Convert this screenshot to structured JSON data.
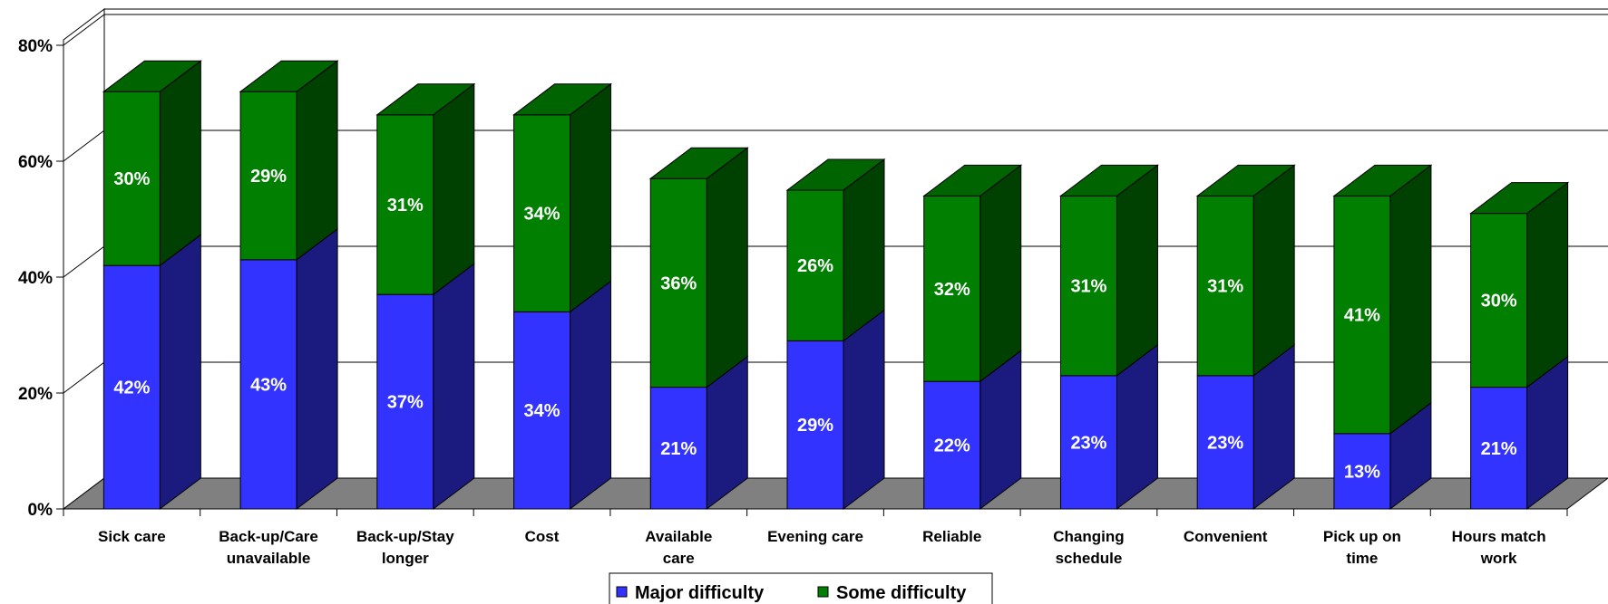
{
  "chart_data": {
    "type": "bar",
    "stacked": true,
    "three_d": true,
    "categories": [
      [
        "Sick care"
      ],
      [
        "Back-up/Care",
        "unavailable"
      ],
      [
        "Back-up/Stay",
        "longer"
      ],
      [
        "Cost"
      ],
      [
        "Available",
        "care"
      ],
      [
        "Evening care"
      ],
      [
        "Reliable"
      ],
      [
        "Changing",
        "schedule"
      ],
      [
        "Convenient"
      ],
      [
        "Pick up on",
        "time"
      ],
      [
        "Hours match",
        "work"
      ]
    ],
    "series": [
      {
        "name": "Major difficulty",
        "values": [
          42,
          43,
          37,
          34,
          21,
          29,
          22,
          23,
          23,
          13,
          21
        ],
        "labels": [
          "42%",
          "43%",
          "37%",
          "34%",
          "21%",
          "29%",
          "22%",
          "23%",
          "23%",
          "13%",
          "21%"
        ],
        "color_front": "#3333ff",
        "color_side": "#1a1a7f",
        "color_top": "#2a2ad0"
      },
      {
        "name": "Some difficulty",
        "values": [
          30,
          29,
          31,
          34,
          36,
          26,
          32,
          31,
          31,
          41,
          30
        ],
        "labels": [
          "30%",
          "29%",
          "31%",
          "34%",
          "36%",
          "26%",
          "32%",
          "31%",
          "31%",
          "41%",
          "30%"
        ],
        "color_front": "#007f00",
        "color_side": "#004000",
        "color_top": "#006400"
      }
    ],
    "y_ticks": [
      {
        "value": 0,
        "label": "0%"
      },
      {
        "value": 20,
        "label": "20%"
      },
      {
        "value": 40,
        "label": "40%"
      },
      {
        "value": 60,
        "label": "60%"
      },
      {
        "value": 80,
        "label": "80%"
      }
    ],
    "ylim": [
      0,
      80
    ],
    "grid": true,
    "legend_position": "bottom-center",
    "floor_color": "#808080"
  }
}
